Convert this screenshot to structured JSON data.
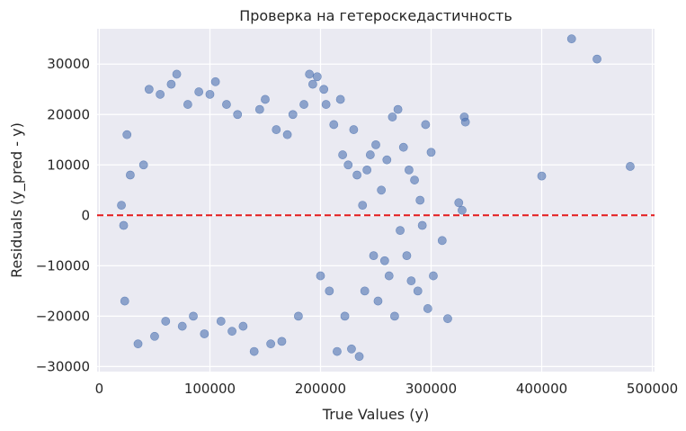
{
  "chart_data": {
    "type": "scatter",
    "title": "Проверка на гетероскедастичность",
    "xlabel": "True Values (y)",
    "ylabel": "Residuals (y_pred - y)",
    "xlim": [
      -2000,
      502000
    ],
    "ylim": [
      -31000,
      37000
    ],
    "x_ticks": [
      0,
      100000,
      200000,
      300000,
      400000,
      500000
    ],
    "y_ticks": [
      -30000,
      -20000,
      -10000,
      0,
      10000,
      20000,
      30000
    ],
    "grid": true,
    "legend": "none",
    "reference_line": {
      "y": 0,
      "color": "#e41a1c",
      "style": "dashed"
    },
    "colors": {
      "point": "#4c72b0",
      "background": "#eaeaf2",
      "grid": "#ffffff"
    },
    "series": [
      {
        "points": [
          [
            20000,
            2000
          ],
          [
            22000,
            -2000
          ],
          [
            25000,
            16000
          ],
          [
            23000,
            -17000
          ],
          [
            28000,
            8000
          ],
          [
            35000,
            -25500
          ],
          [
            40000,
            10000
          ],
          [
            45000,
            25000
          ],
          [
            50000,
            -24000
          ],
          [
            55000,
            24000
          ],
          [
            60000,
            -21000
          ],
          [
            65000,
            26000
          ],
          [
            70000,
            28000
          ],
          [
            75000,
            -22000
          ],
          [
            80000,
            22000
          ],
          [
            85000,
            -20000
          ],
          [
            90000,
            24500
          ],
          [
            95000,
            -23500
          ],
          [
            100000,
            24000
          ],
          [
            105000,
            26500
          ],
          [
            110000,
            -21000
          ],
          [
            115000,
            22000
          ],
          [
            120000,
            -23000
          ],
          [
            125000,
            20000
          ],
          [
            130000,
            -22000
          ],
          [
            140000,
            -27000
          ],
          [
            145000,
            21000
          ],
          [
            150000,
            23000
          ],
          [
            155000,
            -25500
          ],
          [
            160000,
            17000
          ],
          [
            165000,
            -25000
          ],
          [
            170000,
            16000
          ],
          [
            175000,
            20000
          ],
          [
            180000,
            -20000
          ],
          [
            185000,
            22000
          ],
          [
            190000,
            28000
          ],
          [
            193000,
            26000
          ],
          [
            197000,
            27500
          ],
          [
            200000,
            -12000
          ],
          [
            203000,
            25000
          ],
          [
            205000,
            22000
          ],
          [
            208000,
            -15000
          ],
          [
            212000,
            18000
          ],
          [
            215000,
            -27000
          ],
          [
            218000,
            23000
          ],
          [
            220000,
            12000
          ],
          [
            222000,
            -20000
          ],
          [
            225000,
            10000
          ],
          [
            228000,
            -26500
          ],
          [
            230000,
            17000
          ],
          [
            233000,
            8000
          ],
          [
            235000,
            -28000
          ],
          [
            238000,
            2000
          ],
          [
            240000,
            -15000
          ],
          [
            242000,
            9000
          ],
          [
            245000,
            12000
          ],
          [
            248000,
            -8000
          ],
          [
            250000,
            14000
          ],
          [
            252000,
            -17000
          ],
          [
            255000,
            5000
          ],
          [
            258000,
            -9000
          ],
          [
            260000,
            11000
          ],
          [
            262000,
            -12000
          ],
          [
            265000,
            19500
          ],
          [
            267000,
            -20000
          ],
          [
            270000,
            21000
          ],
          [
            272000,
            -3000
          ],
          [
            275000,
            13500
          ],
          [
            278000,
            -8000
          ],
          [
            280000,
            9000
          ],
          [
            282000,
            -13000
          ],
          [
            285000,
            7000
          ],
          [
            288000,
            -15000
          ],
          [
            290000,
            3000
          ],
          [
            292000,
            -2000
          ],
          [
            295000,
            18000
          ],
          [
            297000,
            -18500
          ],
          [
            300000,
            12500
          ],
          [
            302000,
            -12000
          ],
          [
            310000,
            -5000
          ],
          [
            315000,
            -20500
          ],
          [
            325000,
            2500
          ],
          [
            328000,
            1000
          ],
          [
            330000,
            19500
          ],
          [
            331000,
            18500
          ],
          [
            400000,
            7800
          ],
          [
            427000,
            35000
          ],
          [
            450000,
            31000
          ],
          [
            480000,
            9700
          ]
        ]
      }
    ]
  }
}
